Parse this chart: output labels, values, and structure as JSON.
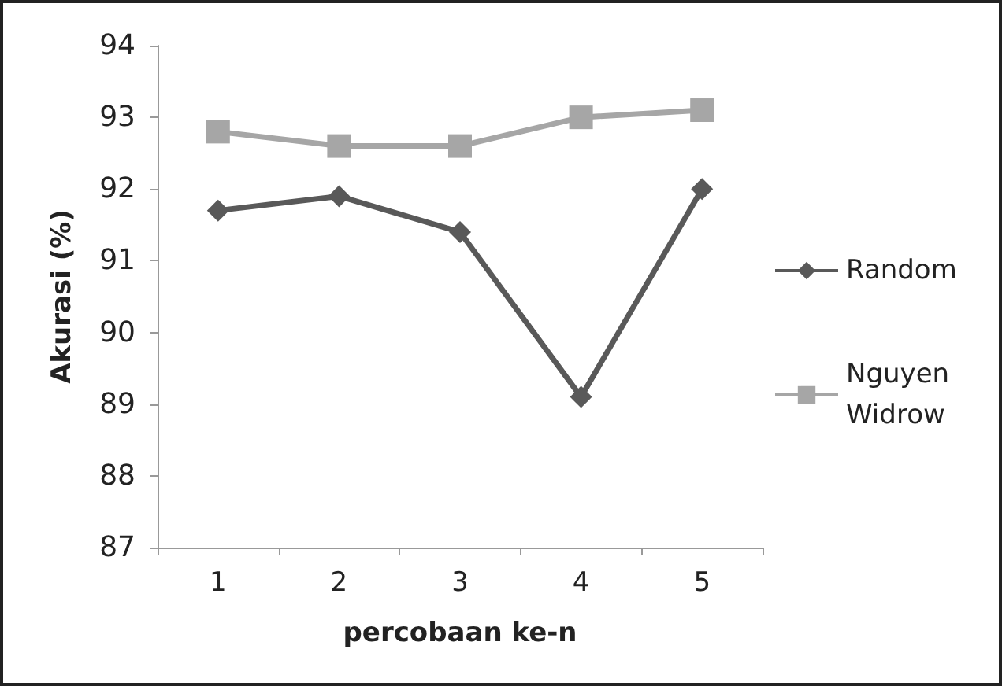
{
  "chart_data": {
    "type": "line",
    "xlabel": "percobaan ke-n",
    "ylabel": "Akurasi (%)",
    "categories": [
      "1",
      "2",
      "3",
      "4",
      "5"
    ],
    "series": [
      {
        "name": "Random",
        "color": "#595959",
        "marker": "diamond",
        "values": [
          91.7,
          91.9,
          91.4,
          89.1,
          92.0
        ]
      },
      {
        "name": "Nguyen Widrow",
        "color": "#a6a6a6",
        "marker": "square",
        "values": [
          92.8,
          92.6,
          92.6,
          93.0,
          93.1
        ]
      }
    ],
    "ylim": [
      87,
      94
    ],
    "yticks": [
      87,
      88,
      89,
      90,
      91,
      92,
      93,
      94
    ],
    "grid": false,
    "legend": "right",
    "line_style": "solid"
  }
}
